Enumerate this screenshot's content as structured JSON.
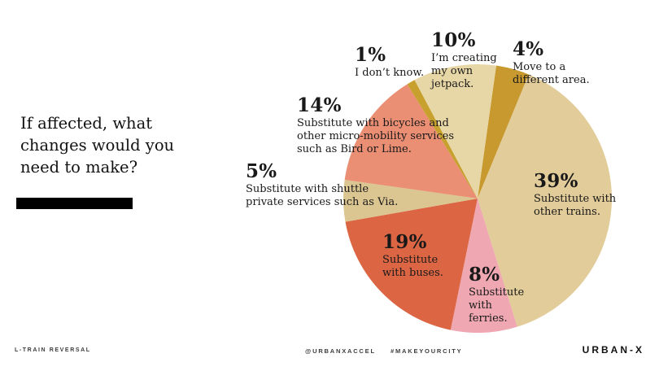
{
  "title": {
    "text": "If affected, what\nchanges would you\nneed to make?"
  },
  "chart_data": {
    "type": "pie",
    "title": "If affected, what changes would you need to make?",
    "unit": "%",
    "rotation_deg": 8,
    "legend_position": "around-slices",
    "slices": [
      {
        "label": "Move to a different area.",
        "value": 4,
        "pct_label": "4%",
        "desc": "Move to a\ndifferent area.",
        "color": "#c7992e"
      },
      {
        "label": "Substitute with other trains.",
        "value": 39,
        "pct_label": "39%",
        "desc": "Substitute with\nother trains.",
        "color": "#e2cc99"
      },
      {
        "label": "Substitute with ferries.",
        "value": 8,
        "pct_label": "8%",
        "desc": "Substitute\nwith\nferries.",
        "color": "#efa7b2"
      },
      {
        "label": "Substitute with buses.",
        "value": 19,
        "pct_label": "19%",
        "desc": "Substitute\nwith buses.",
        "color": "#dc6644"
      },
      {
        "label": "Substitute with shuttle private services such as Via.",
        "value": 5,
        "pct_label": "5%",
        "desc": "Substitute with shuttle\nprivate services such as Via.",
        "color": "#dbc591"
      },
      {
        "label": "Substitute with bicycles and other micro-mobility services such as Bird or Lime.",
        "value": 14,
        "pct_label": "14%",
        "desc": "Substitute with bicycles and\nother micro-mobility services\nsuch as Bird or Lime.",
        "color": "#ea8e74"
      },
      {
        "label": "I don’t know.",
        "value": 1,
        "pct_label": "1%",
        "desc": "I don’t know.",
        "color": "#c7a02e"
      },
      {
        "label": "I’m creating my own jetpack.",
        "value": 10,
        "pct_label": "10%",
        "desc": "I’m creating\nmy own\njetpack.",
        "color": "#e8d7a6"
      }
    ]
  },
  "footer": {
    "left": "L-TRAIN REVERSAL",
    "social": "@URBANXACCEL",
    "hashtag": "#MAKEYOURCITY",
    "brand": "URBAN-X"
  }
}
